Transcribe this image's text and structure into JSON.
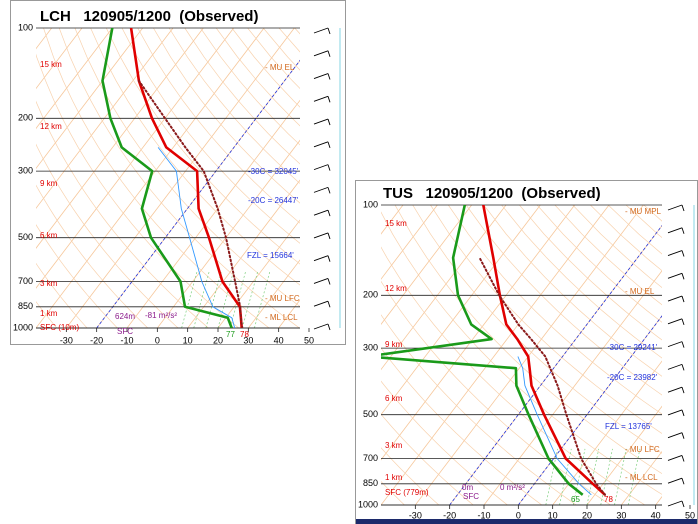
{
  "chart_data": [
    {
      "type": "skewt",
      "title": "LCH   120905/1200  (Observed)",
      "log_scale": true,
      "xlim": [
        -40,
        50
      ],
      "xticks": [
        -30,
        -20,
        -10,
        0,
        10,
        20,
        30,
        40,
        50
      ],
      "ylim": [
        1000,
        100
      ],
      "yticks": [
        100,
        200,
        300,
        500,
        700,
        850,
        1000
      ],
      "x": [
        1000,
        925,
        850,
        700,
        500,
        400,
        300,
        250,
        200,
        150,
        100
      ],
      "series": [
        {
          "color": "#e00000",
          "values": [
            27.8,
            25,
            21.9,
            9.8,
            -5.6,
            -16.3,
            -26.2,
            -42.3,
            -54.3,
            -68,
            -83.8
          ]
        },
        {
          "color": "#1a9a1a",
          "values": [
            24.5,
            20.7,
            3.8,
            -4,
            -24.7,
            -35,
            -41,
            -57,
            -68,
            -80,
            -90
          ]
        },
        {
          "color": "#3399ff",
          "values": [
            25.5,
            22,
            13,
            3,
            -12,
            -22,
            -33,
            -45,
            null,
            null,
            null
          ]
        },
        {
          "color": "#8b1a1a",
          "dash": true,
          "values": [
            28,
            25,
            22,
            14,
            0,
            -10,
            -24,
            -36,
            -50,
            -68,
            null
          ]
        }
      ],
      "annotations": [
        {
          "text": "- MU EL",
          "color": "#d2691e"
        },
        {
          "text": "-30C = 32045'",
          "color": "#2233dd"
        },
        {
          "text": "-20C = 26447'",
          "color": "#2233dd"
        },
        {
          "text": "FZL = 15664'",
          "color": "#2233dd"
        },
        {
          "text": "- MU LFC",
          "color": "#d2691e"
        },
        {
          "text": "- ML LCL",
          "color": "#d2691e"
        },
        {
          "text": "624m",
          "color": "#8b1a8b"
        },
        {
          "text": "-81 m²/s²",
          "color": "#8b1a8b"
        },
        {
          "text": "SFC",
          "color": "#8b1a8b"
        },
        {
          "text": "77",
          "color": "#1a9a1a"
        },
        {
          "text": "78",
          "color": "#e00000"
        },
        {
          "text": "15 km",
          "color": "#e00000"
        },
        {
          "text": "12 km",
          "color": "#e00000"
        },
        {
          "text": "9 km",
          "color": "#e00000"
        },
        {
          "text": "6 km",
          "color": "#e00000"
        },
        {
          "text": "3 km",
          "color": "#e00000"
        },
        {
          "text": "1 km",
          "color": "#e00000"
        },
        {
          "text": "SFC (10m)",
          "color": "#e00000"
        }
      ]
    },
    {
      "type": "skewt",
      "title": "TUS   120905/1200  (Observed)",
      "log_scale": true,
      "xlim": [
        -40,
        50
      ],
      "xticks": [
        -30,
        -20,
        -10,
        0,
        10,
        20,
        30,
        40,
        50
      ],
      "ylim": [
        1000,
        100
      ],
      "yticks": [
        100,
        200,
        300,
        500,
        700,
        850,
        1000
      ],
      "x": [
        925,
        850,
        700,
        500,
        400,
        350,
        320,
        280,
        250,
        200,
        150,
        100
      ],
      "series": [
        {
          "color": "#e00000",
          "values": [
            23,
            17,
            3.5,
            -12.5,
            -22.6,
            -27,
            -30,
            -37,
            -43.5,
            -51.8,
            -62,
            -76.6
          ]
        },
        {
          "color": "#1a9a1a",
          "values": [
            16.5,
            10,
            -1.5,
            -17,
            -27,
            -31,
            -77,
            -44.5,
            -53.7,
            -64,
            -73.7,
            -82
          ]
        },
        {
          "color": "#3399ff",
          "values": [
            19,
            13,
            1,
            -14.5,
            -24.5,
            -29,
            -33,
            null,
            null,
            null,
            null,
            null
          ]
        },
        {
          "color": "#8b1a1a",
          "dash": true,
          "values": [
            23,
            18,
            8,
            -6,
            -15,
            -21,
            -25,
            -33,
            -40,
            -52,
            -66,
            null
          ]
        }
      ],
      "annotations": [
        {
          "text": "- MU MPL",
          "color": "#d2691e"
        },
        {
          "text": "- MU EL",
          "color": "#d2691e"
        },
        {
          "text": "-30C = 29241'",
          "color": "#2233dd"
        },
        {
          "text": "-20C = 23982'",
          "color": "#2233dd"
        },
        {
          "text": "FZL = 13765'",
          "color": "#2233dd"
        },
        {
          "text": "- MU LFC",
          "color": "#d2691e"
        },
        {
          "text": "- ML LCL",
          "color": "#d2691e"
        },
        {
          "text": "0m",
          "color": "#8b1a8b"
        },
        {
          "text": "0 m²/s²",
          "color": "#8b1a8b"
        },
        {
          "text": "SFC",
          "color": "#8b1a8b"
        },
        {
          "text": "65",
          "color": "#1a9a1a"
        },
        {
          "text": "78",
          "color": "#e00000"
        },
        {
          "text": "15 km",
          "color": "#e00000"
        },
        {
          "text": "12 km",
          "color": "#e00000"
        },
        {
          "text": "9 km",
          "color": "#e00000"
        },
        {
          "text": "6 km",
          "color": "#e00000"
        },
        {
          "text": "3 km",
          "color": "#e00000"
        },
        {
          "text": "1 km",
          "color": "#e00000"
        },
        {
          "text": "SFC (779m)",
          "color": "#e00000"
        }
      ]
    }
  ]
}
